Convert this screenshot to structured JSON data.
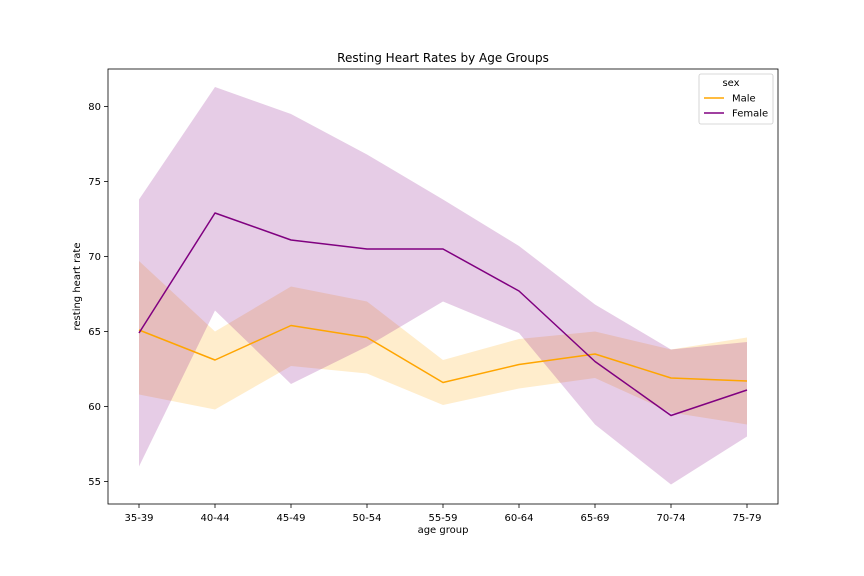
{
  "chart_data": {
    "type": "line",
    "title": "Resting Heart Rates by Age Groups",
    "xlabel": "age group",
    "ylabel": "resting heart rate",
    "categories": [
      "35-39",
      "40-44",
      "45-49",
      "50-54",
      "55-59",
      "60-64",
      "65-69",
      "70-74",
      "75-79"
    ],
    "ylim": [
      53.5,
      82.5
    ],
    "yticks": [
      55,
      60,
      65,
      70,
      75,
      80
    ],
    "grid": false,
    "legend": {
      "title": "sex",
      "position": "top-right"
    },
    "series": [
      {
        "name": "Male",
        "color": "#ffa500",
        "band_color": "#ffa500",
        "values": [
          65.1,
          63.1,
          65.4,
          64.6,
          61.6,
          62.8,
          63.5,
          61.9,
          61.7
        ],
        "ci_low": [
          60.8,
          59.8,
          62.7,
          62.2,
          60.1,
          61.2,
          61.9,
          59.6,
          58.8
        ],
        "ci_high": [
          69.7,
          65.0,
          68.0,
          67.0,
          63.1,
          64.5,
          65.0,
          63.8,
          64.6
        ]
      },
      {
        "name": "Female",
        "color": "#800080",
        "band_color": "#800080",
        "values": [
          64.9,
          72.9,
          71.1,
          70.5,
          70.5,
          67.7,
          63.0,
          59.4,
          61.1
        ],
        "ci_low": [
          56.0,
          66.4,
          61.5,
          64.0,
          67.0,
          64.9,
          58.8,
          54.8,
          58.0
        ],
        "ci_high": [
          73.8,
          81.3,
          79.5,
          76.8,
          73.8,
          70.7,
          66.8,
          63.8,
          64.3
        ]
      }
    ]
  }
}
